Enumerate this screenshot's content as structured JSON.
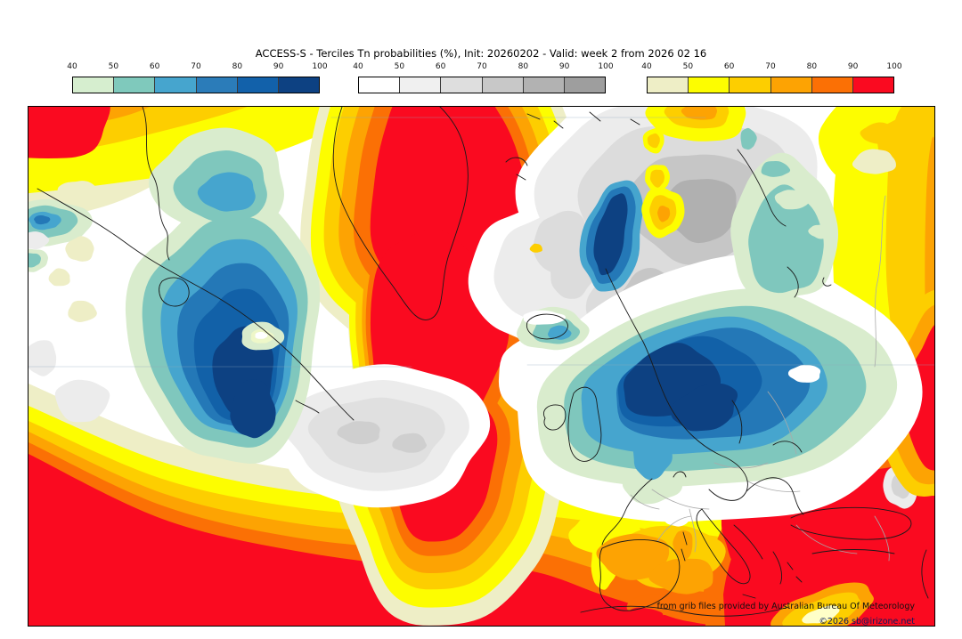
{
  "title": "ACCESS-S - Terciles Tn probabilities (%), Init: 20260202 - Valid: week 2 from 2026 02 16",
  "colorbars": [
    {
      "id": "below-normal-blues",
      "ticks": [
        "40",
        "50",
        "60",
        "70",
        "80",
        "90",
        "100"
      ],
      "colors": [
        "#d6eecf",
        "#7fc9bc",
        "#46a5ce",
        "#2b7cb9",
        "#1261aa",
        "#0d4182"
      ]
    },
    {
      "id": "near-normal-grays",
      "ticks": [
        "40",
        "50",
        "60",
        "70",
        "80",
        "90",
        "100"
      ],
      "colors": [
        "#ffffff",
        "#f0f0f0",
        "#dedede",
        "#c8c8c8",
        "#b2b2b2",
        "#9e9e9e"
      ]
    },
    {
      "id": "above-normal-warms",
      "ticks": [
        "40",
        "50",
        "60",
        "70",
        "80",
        "90",
        "100"
      ],
      "colors": [
        "#eeeec6",
        "#fdfd00",
        "#fdce00",
        "#fda303",
        "#fb7005",
        "#fa0a20"
      ]
    }
  ],
  "credits": {
    "line1": "from grib files provided by Australian Bureau Of Meteorology",
    "line2": "©2026 sb@irizone.net"
  }
}
